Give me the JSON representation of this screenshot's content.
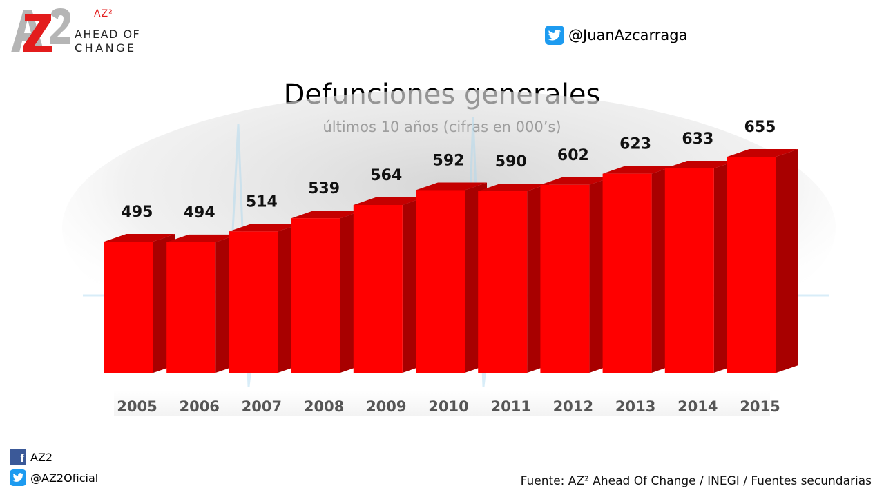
{
  "brand": {
    "sup": "AZ²",
    "line1": "AHEAD OF",
    "line2": "CHANGE"
  },
  "header": {
    "twitter_handle": "@JuanAzcarraga"
  },
  "chart_data": {
    "type": "bar",
    "title": "Defunciones generales",
    "subtitle": "últimos 10 años (cifras en 000’s)",
    "categories": [
      "2005",
      "2006",
      "2007",
      "2008",
      "2009",
      "2010",
      "2011",
      "2012",
      "2013",
      "2014",
      "2015"
    ],
    "values": [
      495,
      494,
      514,
      539,
      564,
      592,
      590,
      602,
      623,
      633,
      655
    ],
    "bar_color": "#ff0000",
    "bar_side_color": "#a80000",
    "bar_top_color": "#c40000",
    "grid": false,
    "legend": "none",
    "style": "3d"
  },
  "footer": {
    "facebook": "AZ2",
    "twitter": "@AZ2Oficial",
    "source": "Fuente: AZ² Ahead Of Change / INEGI / Fuentes secundarias"
  },
  "colors": {
    "brand_red": "#e31c1c",
    "twitter_blue": "#1d9bf0",
    "facebook_blue": "#3b5998"
  }
}
